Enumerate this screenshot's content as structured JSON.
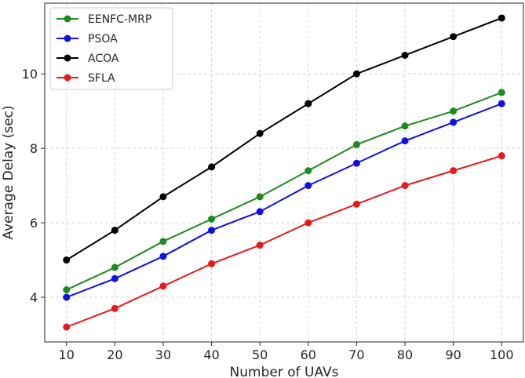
{
  "chart_data": {
    "type": "line",
    "title": "",
    "xlabel": "Number of UAVs",
    "ylabel": "Average Delay (sec)",
    "x": [
      10,
      20,
      30,
      40,
      50,
      60,
      70,
      80,
      90,
      100
    ],
    "xticks": [
      "10",
      "20",
      "30",
      "40",
      "50",
      "60",
      "70",
      "80",
      "90",
      "100"
    ],
    "yticks": [
      4,
      6,
      8,
      10
    ],
    "ytick_labels": [
      "4",
      "6",
      "8",
      "10"
    ],
    "xlim": [
      5.5,
      104.5
    ],
    "ylim": [
      2.8,
      11.9
    ],
    "grid": true,
    "legend_position": "top-left",
    "series": [
      {
        "name": "EENFC-MRP",
        "color": "#1f8a1f",
        "values": [
          4.2,
          4.8,
          5.5,
          6.1,
          6.7,
          7.4,
          8.1,
          8.6,
          9.0,
          9.5
        ]
      },
      {
        "name": "PSOA",
        "color": "#1010e6",
        "values": [
          4.0,
          4.5,
          5.1,
          5.8,
          6.3,
          7.0,
          7.6,
          8.2,
          8.7,
          9.2
        ]
      },
      {
        "name": "ACOA",
        "color": "#000000",
        "values": [
          5.0,
          5.8,
          6.7,
          7.5,
          8.4,
          9.2,
          10.0,
          10.5,
          11.0,
          11.5
        ]
      },
      {
        "name": "SFLA",
        "color": "#e61a1a",
        "values": [
          3.2,
          3.7,
          4.3,
          4.9,
          5.4,
          6.0,
          6.5,
          7.0,
          7.4,
          7.8
        ]
      }
    ]
  }
}
